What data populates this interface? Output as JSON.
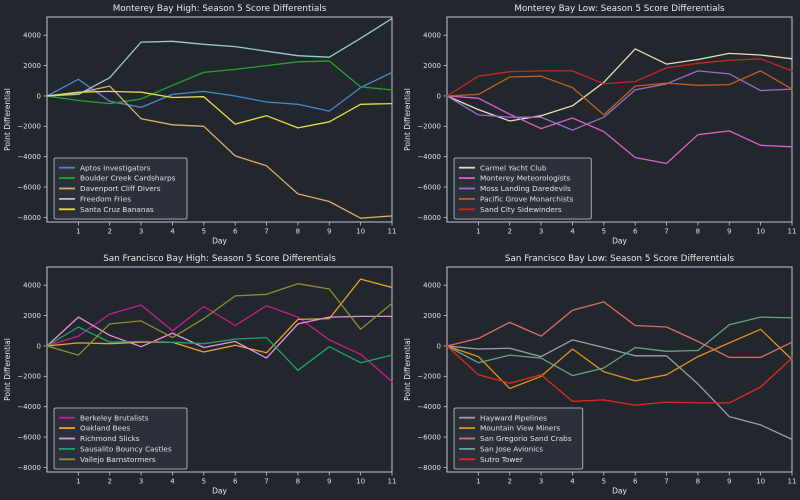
{
  "figure": {
    "background": "#22262d",
    "spine_color": "#c4c8ce",
    "text_color": "#e8eaed",
    "tick_text_color": "#dfe2e6",
    "legend_background": "#2b303a",
    "legend_border": "#c9ccd2",
    "xlabel": "Day",
    "ylabel": "Point Differential",
    "x_tick_labels": [
      "1",
      "2",
      "3",
      "4",
      "5",
      "6",
      "7",
      "8",
      "9",
      "10",
      "11"
    ],
    "y_tick_labels": [
      "4000",
      "2000",
      "0",
      "−2000",
      "−4000",
      "−6000",
      "−8000"
    ],
    "xlim": [
      0,
      11
    ],
    "ylim": [
      -8300,
      5200
    ],
    "grid": false,
    "legend_position": "lower-left"
  },
  "chart_data": [
    {
      "type": "line",
      "title": "Monterey Bay High: Season 5 Score Differentials",
      "xlabel": "Day",
      "ylabel": "Point Differential",
      "x": [
        0,
        1,
        2,
        3,
        4,
        5,
        6,
        7,
        8,
        9,
        10,
        11
      ],
      "x_ticks": [
        1,
        2,
        3,
        4,
        5,
        6,
        7,
        8,
        9,
        10,
        11
      ],
      "y_ticks": [
        4000,
        2000,
        0,
        -2000,
        -4000,
        -6000,
        -8000
      ],
      "ylim": [
        -8300,
        5200
      ],
      "series": [
        {
          "name": "Aptos Investigators",
          "color": "#4a89ce",
          "values": [
            0,
            1100,
            -350,
            -750,
            100,
            300,
            0,
            -400,
            -550,
            -1000,
            550,
            1550
          ]
        },
        {
          "name": "Boulder Creek Cardsharps",
          "color": "#28a32e",
          "values": [
            0,
            -300,
            -500,
            -200,
            700,
            1550,
            1750,
            2000,
            2250,
            2300,
            600,
            400
          ]
        },
        {
          "name": "Davenport Cliff Divers",
          "color": "#d9ad68",
          "values": [
            0,
            200,
            650,
            -1500,
            -1900,
            -2000,
            -3950,
            -4600,
            -6450,
            -6950,
            -8050,
            -7900
          ]
        },
        {
          "name": "Freedom Fries",
          "color": "#9ecaca",
          "values": [
            0,
            100,
            1200,
            3550,
            3600,
            3400,
            3250,
            2950,
            2650,
            2550,
            3800,
            5100
          ]
        },
        {
          "name": "Santa Cruz Bananas",
          "color": "#e3e040",
          "values": [
            0,
            250,
            300,
            250,
            -100,
            -50,
            -1850,
            -1300,
            -2100,
            -1700,
            -550,
            -500
          ]
        }
      ]
    },
    {
      "type": "line",
      "title": "Monterey Bay Low: Season 5 Score Differentials",
      "xlabel": "Day",
      "ylabel": "Point Differential",
      "x": [
        0,
        1,
        2,
        3,
        4,
        5,
        6,
        7,
        8,
        9,
        10,
        11
      ],
      "x_ticks": [
        1,
        2,
        3,
        4,
        5,
        6,
        7,
        8,
        9,
        10,
        11
      ],
      "y_ticks": [
        4000,
        2000,
        0,
        -2000,
        -4000,
        -6000,
        -8000
      ],
      "ylim": [
        -8300,
        5200
      ],
      "series": [
        {
          "name": "Carmel Yacht Club",
          "color": "#e9dcba",
          "values": [
            0,
            -900,
            -1650,
            -1300,
            -650,
            900,
            3100,
            2100,
            2400,
            2800,
            2700,
            2450
          ]
        },
        {
          "name": "Monterey Meteorologists",
          "color": "#de62c4",
          "values": [
            0,
            -150,
            -1200,
            -2150,
            -1450,
            -2350,
            -4050,
            -4450,
            -2550,
            -2300,
            -3250,
            -3350
          ]
        },
        {
          "name": "Moss Landing Daredevils",
          "color": "#9b6fc8",
          "values": [
            0,
            -1250,
            -1400,
            -1400,
            -2250,
            -1400,
            400,
            800,
            1650,
            1450,
            350,
            450
          ]
        },
        {
          "name": "Pacific Grove Monarchists",
          "color": "#c3601e",
          "values": [
            0,
            100,
            1250,
            1300,
            550,
            -1250,
            650,
            850,
            700,
            750,
            1650,
            450
          ]
        },
        {
          "name": "Sand City Sidewinders",
          "color": "#c62622",
          "values": [
            0,
            1300,
            1600,
            1650,
            1650,
            800,
            950,
            1850,
            2150,
            2350,
            2450,
            1650
          ]
        }
      ]
    },
    {
      "type": "line",
      "title": "San Francisco Bay High: Season 5 Score Differentials",
      "xlabel": "Day",
      "ylabel": "Point Differential",
      "x": [
        0,
        1,
        2,
        3,
        4,
        5,
        6,
        7,
        8,
        9,
        10,
        11
      ],
      "x_ticks": [
        1,
        2,
        3,
        4,
        5,
        6,
        7,
        8,
        9,
        10,
        11
      ],
      "y_ticks": [
        4000,
        2000,
        0,
        -2000,
        -4000,
        -6000,
        -8000
      ],
      "ylim": [
        -8300,
        5200
      ],
      "series": [
        {
          "name": "Berkeley Brutalists",
          "color": "#c71f8a",
          "values": [
            0,
            650,
            2100,
            2700,
            1000,
            2600,
            1350,
            2650,
            1900,
            400,
            -550,
            -2350
          ]
        },
        {
          "name": "Oakland Bees",
          "color": "#eaa42d",
          "values": [
            0,
            200,
            150,
            250,
            250,
            -400,
            50,
            -450,
            1750,
            1800,
            4400,
            3850
          ]
        },
        {
          "name": "Richmond Slicks",
          "color": "#e393dd",
          "values": [
            0,
            1900,
            700,
            -50,
            850,
            -100,
            300,
            -800,
            1450,
            1900,
            1950,
            1950
          ]
        },
        {
          "name": "Sausalito Bouncy Castles",
          "color": "#1fa26b",
          "values": [
            0,
            1250,
            250,
            300,
            250,
            150,
            450,
            550,
            -1600,
            -50,
            -1100,
            -600
          ]
        },
        {
          "name": "Vallejo Barnstormers",
          "color": "#8f8f2f",
          "values": [
            0,
            -600,
            1450,
            1650,
            550,
            1800,
            3300,
            3400,
            4100,
            3750,
            1100,
            2800
          ]
        }
      ]
    },
    {
      "type": "line",
      "title": "San Francisco Bay Low: Season 5 Score Differentials",
      "xlabel": "Day",
      "ylabel": "Point Differential",
      "x": [
        0,
        1,
        2,
        3,
        4,
        5,
        6,
        7,
        8,
        9,
        10,
        11
      ],
      "x_ticks": [
        1,
        2,
        3,
        4,
        5,
        6,
        7,
        8,
        9,
        10,
        11
      ],
      "y_ticks": [
        4000,
        2000,
        0,
        -2000,
        -4000,
        -6000,
        -8000
      ],
      "ylim": [
        -8300,
        5200
      ],
      "series": [
        {
          "name": "Hayward Pipelines",
          "color": "#9ba1a6",
          "values": [
            0,
            -200,
            -150,
            -700,
            400,
            -100,
            -650,
            -650,
            -2500,
            -4650,
            -5200,
            -6150
          ]
        },
        {
          "name": "Mountain View Miners",
          "color": "#e2921e",
          "values": [
            0,
            -700,
            -2800,
            -2000,
            -200,
            -1700,
            -2300,
            -1900,
            -700,
            200,
            1100,
            -900
          ]
        },
        {
          "name": "San Gregorio Sand Crabs",
          "color": "#db7067",
          "values": [
            0,
            500,
            1550,
            650,
            2350,
            2900,
            1350,
            1250,
            300,
            -750,
            -750,
            250
          ]
        },
        {
          "name": "San Jose Avionics",
          "color": "#6aa287",
          "values": [
            0,
            -1100,
            -600,
            -800,
            -1950,
            -1450,
            -100,
            -350,
            -300,
            1400,
            1900,
            1850
          ]
        },
        {
          "name": "Sutro Tower",
          "color": "#e12a1e",
          "values": [
            0,
            -1900,
            -2450,
            -1900,
            -3650,
            -3550,
            -3900,
            -3700,
            -3750,
            -3750,
            -2700,
            -800
          ]
        }
      ]
    }
  ]
}
